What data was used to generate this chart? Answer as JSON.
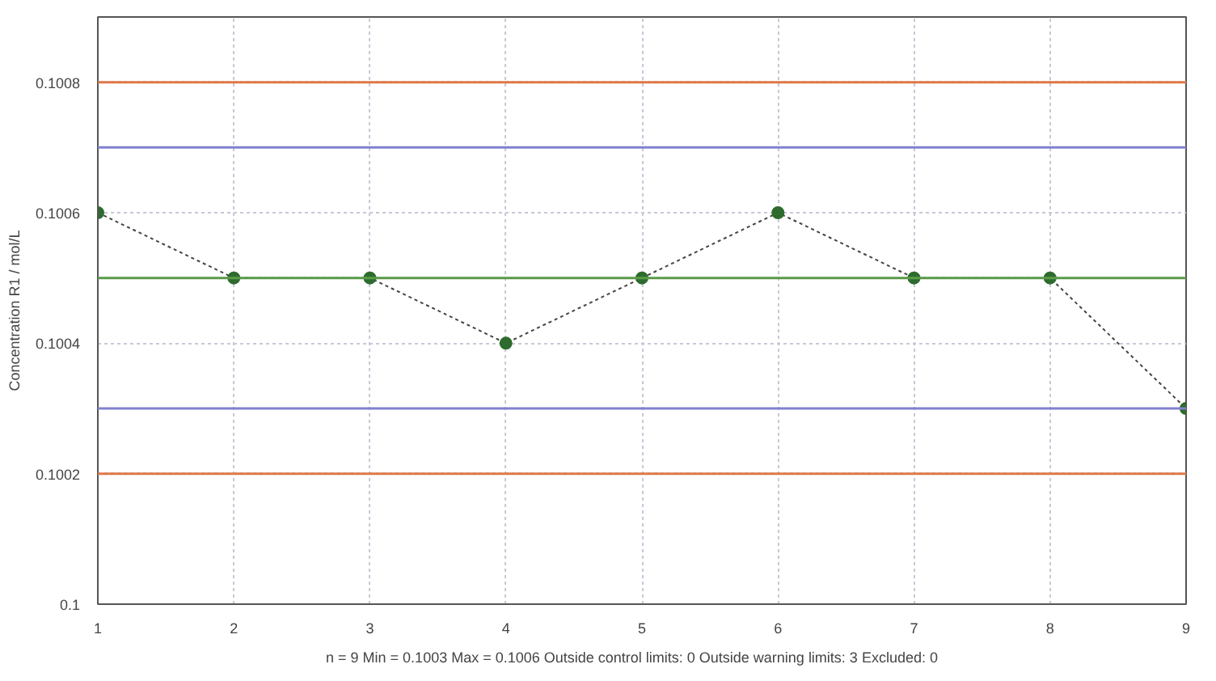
{
  "chart_data": {
    "type": "line",
    "ylabel": "Concentration R1 / mol/L",
    "x": [
      1,
      2,
      3,
      4,
      5,
      6,
      7,
      8,
      9
    ],
    "series": [
      {
        "color": "#2e6b2e",
        "values": [
          0.1006,
          0.1005,
          0.1005,
          0.1004,
          0.1005,
          0.1006,
          0.1005,
          0.1005,
          0.1003
        ]
      }
    ],
    "xlim": [
      1,
      9
    ],
    "xticks": [
      1,
      2,
      3,
      4,
      5,
      6,
      7,
      8,
      9
    ],
    "ylim": [
      0.1,
      0.1009
    ],
    "yticks": [
      0.1,
      0.1002,
      0.1004,
      0.1006,
      0.1008
    ],
    "ref_lines": [
      {
        "axis": "y",
        "value": 0.1008,
        "color": "#e07848"
      },
      {
        "axis": "y",
        "value": 0.1007,
        "color": "#8080d0"
      },
      {
        "axis": "y",
        "value": 0.1005,
        "color": "#5a9a48"
      },
      {
        "axis": "y",
        "value": 0.1003,
        "color": "#8080d0"
      },
      {
        "axis": "y",
        "value": 0.1002,
        "color": "#e07848"
      }
    ],
    "grid": true,
    "marker": "circle",
    "line_style": "dotted",
    "annotations": [
      "n = 9  Min = 0.1003  Max = 0.1006  Outside control limits: 0  Outside warning limits: 3  Excluded: 0"
    ]
  }
}
